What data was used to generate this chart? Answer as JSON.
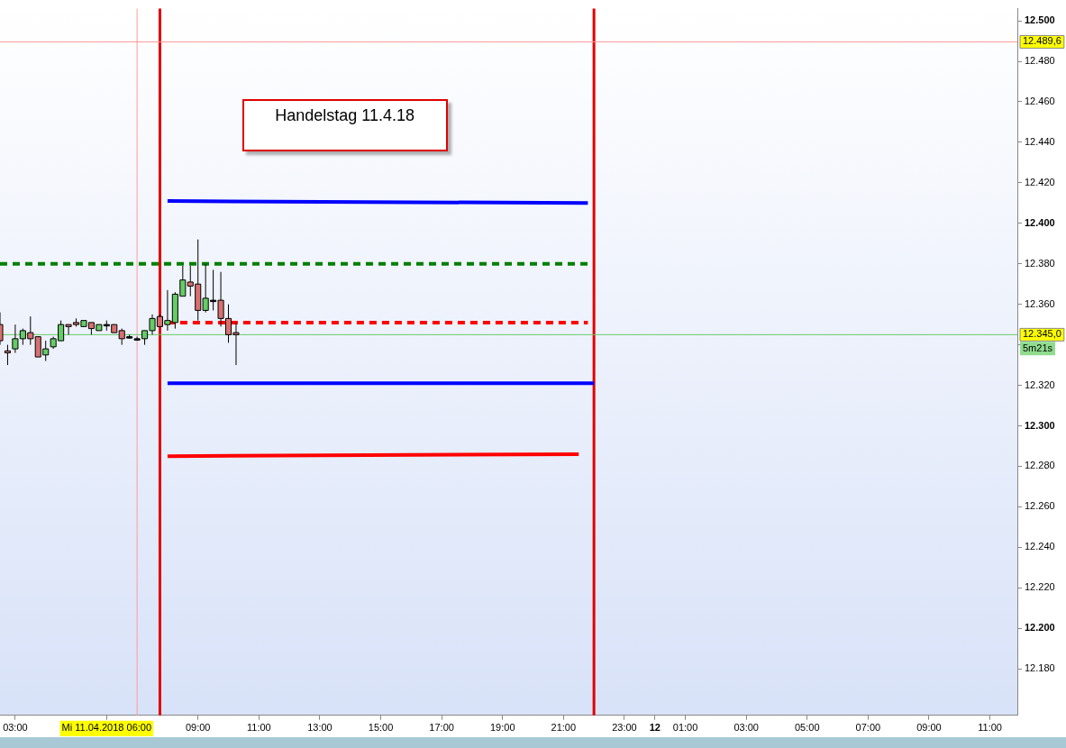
{
  "chart_data": {
    "type": "candlestick",
    "x": [
      "2018-04-11T02:30",
      "2018-04-11T02:45",
      "2018-04-11T03:00",
      "2018-04-11T03:15",
      "2018-04-11T03:30",
      "2018-04-11T03:45",
      "2018-04-11T04:00",
      "2018-04-11T04:15",
      "2018-04-11T04:30",
      "2018-04-11T04:45",
      "2018-04-11T05:00",
      "2018-04-11T05:15",
      "2018-04-11T05:30",
      "2018-04-11T05:45",
      "2018-04-11T06:00",
      "2018-04-11T06:15",
      "2018-04-11T06:30",
      "2018-04-11T06:45",
      "2018-04-11T07:00",
      "2018-04-11T07:15",
      "2018-04-11T07:30",
      "2018-04-11T07:45",
      "2018-04-11T08:00",
      "2018-04-11T08:15",
      "2018-04-11T08:30",
      "2018-04-11T08:45",
      "2018-04-11T09:00",
      "2018-04-11T09:15",
      "2018-04-11T09:30",
      "2018-04-11T09:45",
      "2018-04-11T10:00",
      "2018-04-11T10:15"
    ],
    "ohlc": [
      [
        12350,
        12356,
        12340,
        12342
      ],
      [
        12337,
        12340,
        12330,
        12336
      ],
      [
        12338,
        12350,
        12336,
        12343
      ],
      [
        12343,
        12348,
        12340,
        12347
      ],
      [
        12346,
        12354,
        12340,
        12343
      ],
      [
        12344,
        12344,
        12334,
        12334
      ],
      [
        12335,
        12342,
        12332,
        12338
      ],
      [
        12339,
        12344,
        12338,
        12343
      ],
      [
        12342,
        12352,
        12342,
        12350
      ],
      [
        12350,
        12350,
        12345,
        12349
      ],
      [
        12351,
        12353,
        12349,
        12350
      ],
      [
        12349,
        12352,
        12349,
        12352
      ],
      [
        12351,
        12351,
        12345,
        12348
      ],
      [
        12347,
        12350,
        12347,
        12350
      ],
      [
        12350,
        12352,
        12347,
        12350
      ],
      [
        12350,
        12350,
        12346,
        12346
      ],
      [
        12347,
        12348,
        12340,
        12343
      ],
      [
        12344,
        12345,
        12343,
        12344
      ],
      [
        12343,
        12344,
        12342,
        12343
      ],
      [
        12343,
        12347,
        12340,
        12347
      ],
      [
        12347,
        12355,
        12345,
        12353
      ],
      [
        12354,
        12355,
        12349,
        12349
      ],
      [
        12350,
        12367,
        12347,
        12352
      ],
      [
        12351,
        12366,
        12348,
        12365
      ],
      [
        12364,
        12379,
        12364,
        12372
      ],
      [
        12371,
        12379,
        12364,
        12369
      ],
      [
        12370,
        12392,
        12352,
        12357
      ],
      [
        12357,
        12380,
        12356,
        12363
      ],
      [
        12362,
        12377,
        12357,
        12362
      ],
      [
        12362,
        12376,
        12349,
        12353
      ],
      [
        12353,
        12360,
        12341,
        12345
      ],
      [
        12346,
        12351,
        12330,
        12345
      ]
    ],
    "colors": [
      "#d97070",
      "#d97070",
      "#66cc66",
      "#66cc66",
      "#d97070",
      "#d97070",
      "#66cc66",
      "#66cc66",
      "#66cc66",
      "#d97070",
      "#d97070",
      "#66cc66",
      "#d97070",
      "#66cc66",
      "#000000",
      "#d97070",
      "#d97070",
      "#000000",
      "#000000",
      "#66cc66",
      "#66cc66",
      "#d97070",
      "#66cc66",
      "#66cc66",
      "#66cc66",
      "#d97070",
      "#d97070",
      "#66cc66",
      "#000000",
      "#d97070",
      "#d97070",
      "#d97070"
    ],
    "series": [
      {
        "type": "line",
        "color": "#0000ff",
        "x": [
          "2018-04-11T08:00",
          "2018-04-11T21:48"
        ],
        "values": [
          12411,
          12410
        ]
      },
      {
        "type": "line",
        "color": "#0000ff",
        "x": [
          "2018-04-11T08:00",
          "2018-04-11T22:00"
        ],
        "values": [
          12321,
          12321
        ]
      },
      {
        "type": "line",
        "color": "#ff0000",
        "x": [
          "2018-04-11T08:00",
          "2018-04-11T21:30"
        ],
        "values": [
          12285,
          12286
        ]
      },
      {
        "type": "line",
        "color": "#008000",
        "line_style": "dashed",
        "x": [
          "2018-04-11T02:30",
          "2018-04-11T21:48"
        ],
        "values": [
          12380,
          12380
        ]
      },
      {
        "type": "line",
        "color": "#ff0000",
        "line_style": "dashed",
        "x": [
          "2018-04-11T08:00",
          "2018-04-11T21:48"
        ],
        "values": [
          12351,
          12351
        ]
      }
    ],
    "marker": "none",
    "xlim": [
      "2018-04-11T02:30",
      "2018-04-12T11:54"
    ],
    "xticks": [
      {
        "value": "2018-04-11T03:00",
        "label": "03:00"
      },
      {
        "value": "2018-04-11T06:00",
        "label": "Mi 11.04.2018 06:00"
      },
      {
        "value": "2018-04-11T09:00",
        "label": "09:00"
      },
      {
        "value": "2018-04-11T11:00",
        "label": "11:00"
      },
      {
        "value": "2018-04-11T13:00",
        "label": "13:00"
      },
      {
        "value": "2018-04-11T15:00",
        "label": "15:00"
      },
      {
        "value": "2018-04-11T17:00",
        "label": "17:00"
      },
      {
        "value": "2018-04-11T19:00",
        "label": "19:00"
      },
      {
        "value": "2018-04-11T21:00",
        "label": "21:00"
      },
      {
        "value": "2018-04-11T23:00",
        "label": "23:00"
      },
      {
        "value": "2018-04-12T00:00",
        "label": "12"
      },
      {
        "value": "2018-04-12T01:00",
        "label": "01:00"
      },
      {
        "value": "2018-04-12T03:00",
        "label": "03:00"
      },
      {
        "value": "2018-04-12T05:00",
        "label": "05:00"
      },
      {
        "value": "2018-04-12T07:00",
        "label": "07:00"
      },
      {
        "value": "2018-04-12T09:00",
        "label": "09:00"
      },
      {
        "value": "2018-04-12T11:00",
        "label": "11:00"
      }
    ],
    "ylim": [
      12157,
      12506
    ],
    "yticks": [
      {
        "value": 12180,
        "label": "12.180"
      },
      {
        "value": 12200,
        "label": "12.200"
      },
      {
        "value": 12220,
        "label": "12.220"
      },
      {
        "value": 12240,
        "label": "12.240"
      },
      {
        "value": 12260,
        "label": "12.260"
      },
      {
        "value": 12280,
        "label": "12.280"
      },
      {
        "value": 12300,
        "label": "12.300"
      },
      {
        "value": 12320,
        "label": "12.320"
      },
      {
        "value": 12340,
        "label": null
      },
      {
        "value": 12360,
        "label": "12.360"
      },
      {
        "value": 12380,
        "label": "12.380"
      },
      {
        "value": 12400,
        "label": "12.400"
      },
      {
        "value": 12420,
        "label": "12.420"
      },
      {
        "value": 12440,
        "label": "12.440"
      },
      {
        "value": 12460,
        "label": "12.460"
      },
      {
        "value": 12480,
        "label": "12.480"
      },
      {
        "value": 12500,
        "label": "12.500"
      }
    ],
    "ref_lines": [
      {
        "axis": "x",
        "value": "2018-04-11T07:45",
        "color": "#e00000"
      },
      {
        "axis": "x",
        "value": "2018-04-11T22:00",
        "color": "#e00000"
      },
      {
        "axis": "x",
        "value": "2018-04-11T07:00",
        "color": "#ff9a9a"
      },
      {
        "axis": "y",
        "value": 12489.6,
        "label": "12.489,6",
        "color": "#ff9a9a"
      },
      {
        "axis": "y",
        "value": 12345,
        "label": "12.345,0",
        "color": "#66cc66"
      }
    ],
    "annotations": [
      "Handelstag 11.4.18",
      "5m21s"
    ],
    "grid": false,
    "legend": false
  }
}
